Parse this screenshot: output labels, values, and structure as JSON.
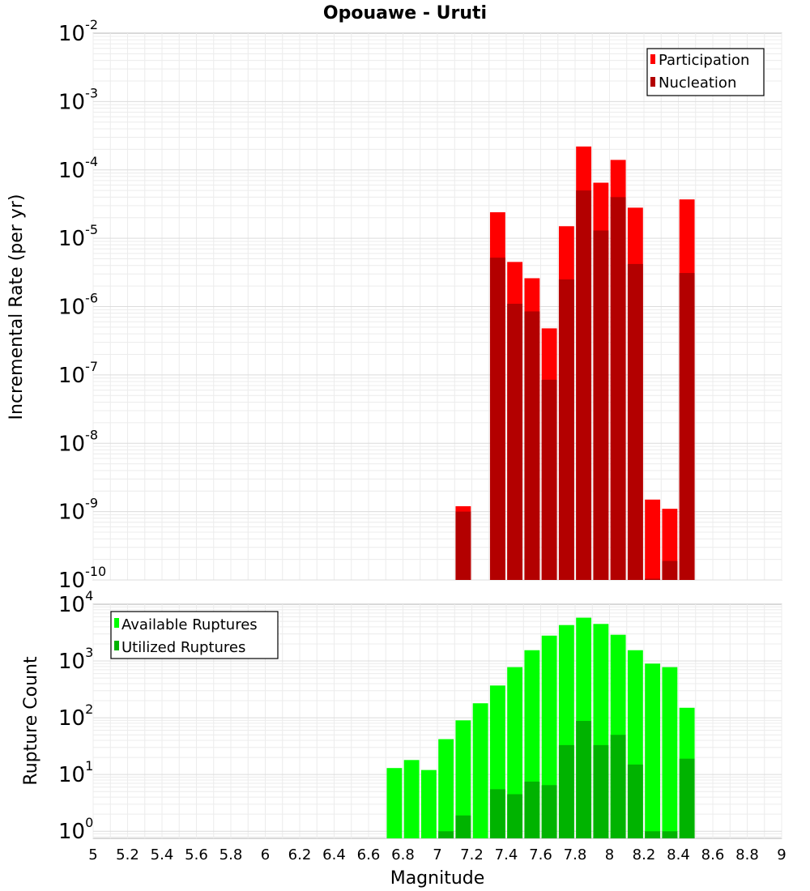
{
  "chart_data": {
    "type": "bar",
    "title": "Opouawe - Uruti",
    "xlabel": "Magnitude",
    "xlim": [
      5,
      9
    ],
    "x_ticks": [
      "5",
      "5.2",
      "5.4",
      "5.6",
      "5.8",
      "6",
      "6.2",
      "6.4",
      "6.6",
      "6.8",
      "7",
      "7.2",
      "7.4",
      "7.6",
      "7.8",
      "8",
      "8.2",
      "8.4",
      "8.6",
      "8.8",
      "9"
    ],
    "grid": true,
    "panels": [
      {
        "id": "rate",
        "ylabel": "Incremental Rate (per yr)",
        "yscale": "log",
        "ylim": [
          1e-10,
          0.01
        ],
        "y_tick_exponents": [
          "-10",
          "-9",
          "-8",
          "-7",
          "-6",
          "-5",
          "-4",
          "-3",
          "-2"
        ],
        "y_tick_base": "10",
        "legend_position": "top-right",
        "series": [
          {
            "name": "Participation",
            "color": "#ff0000",
            "points": [
              {
                "x": 7.15,
                "y": 1.2e-09
              },
              {
                "x": 7.35,
                "y": 2.4e-05
              },
              {
                "x": 7.45,
                "y": 4.5e-06
              },
              {
                "x": 7.55,
                "y": 2.6e-06
              },
              {
                "x": 7.65,
                "y": 4.8e-07
              },
              {
                "x": 7.75,
                "y": 1.5e-05
              },
              {
                "x": 7.85,
                "y": 0.00022
              },
              {
                "x": 7.95,
                "y": 6.5e-05
              },
              {
                "x": 8.05,
                "y": 0.00014
              },
              {
                "x": 8.15,
                "y": 2.8e-05
              },
              {
                "x": 8.25,
                "y": 1.5e-09
              },
              {
                "x": 8.35,
                "y": 1.1e-09
              },
              {
                "x": 8.45,
                "y": 3.7e-05
              }
            ]
          },
          {
            "name": "Nucleation",
            "color": "#b30000",
            "points": [
              {
                "x": 7.15,
                "y": 1e-09
              },
              {
                "x": 7.35,
                "y": 5.2e-06
              },
              {
                "x": 7.45,
                "y": 1.1e-06
              },
              {
                "x": 7.55,
                "y": 8.5e-07
              },
              {
                "x": 7.65,
                "y": 8.5e-08
              },
              {
                "x": 7.75,
                "y": 2.5e-06
              },
              {
                "x": 7.85,
                "y": 5e-05
              },
              {
                "x": 7.95,
                "y": 1.3e-05
              },
              {
                "x": 8.05,
                "y": 4e-05
              },
              {
                "x": 8.15,
                "y": 4.2e-06
              },
              {
                "x": 8.25,
                "y": 1e-10
              },
              {
                "x": 8.35,
                "y": 1.9e-10
              },
              {
                "x": 8.45,
                "y": 3.1e-06
              }
            ]
          }
        ]
      },
      {
        "id": "count",
        "ylabel": "Rupture Count",
        "yscale": "log",
        "ylim": [
          0.75,
          10000
        ],
        "y_tick_exponents": [
          "0",
          "1",
          "2",
          "3",
          "4"
        ],
        "y_tick_base": "10",
        "legend_position": "top-left",
        "series": [
          {
            "name": "Available Ruptures",
            "color": "#00ff00",
            "points": [
              {
                "x": 6.75,
                "y": 13
              },
              {
                "x": 6.85,
                "y": 18
              },
              {
                "x": 6.95,
                "y": 12
              },
              {
                "x": 7.05,
                "y": 42
              },
              {
                "x": 7.15,
                "y": 90
              },
              {
                "x": 7.25,
                "y": 180
              },
              {
                "x": 7.35,
                "y": 370
              },
              {
                "x": 7.45,
                "y": 780
              },
              {
                "x": 7.55,
                "y": 1550
              },
              {
                "x": 7.65,
                "y": 2800
              },
              {
                "x": 7.75,
                "y": 4300
              },
              {
                "x": 7.85,
                "y": 5800
              },
              {
                "x": 7.95,
                "y": 4500
              },
              {
                "x": 8.05,
                "y": 2900
              },
              {
                "x": 8.15,
                "y": 1550
              },
              {
                "x": 8.25,
                "y": 900
              },
              {
                "x": 8.35,
                "y": 780
              },
              {
                "x": 8.45,
                "y": 150
              }
            ]
          },
          {
            "name": "Utilized Ruptures",
            "color": "#00b300",
            "points": [
              {
                "x": 7.05,
                "y": 1
              },
              {
                "x": 7.15,
                "y": 1.9
              },
              {
                "x": 7.35,
                "y": 5.5
              },
              {
                "x": 7.45,
                "y": 4.5
              },
              {
                "x": 7.55,
                "y": 7.5
              },
              {
                "x": 7.65,
                "y": 6.5
              },
              {
                "x": 7.75,
                "y": 33
              },
              {
                "x": 7.85,
                "y": 88
              },
              {
                "x": 7.95,
                "y": 33
              },
              {
                "x": 8.05,
                "y": 50
              },
              {
                "x": 8.15,
                "y": 15
              },
              {
                "x": 8.25,
                "y": 1
              },
              {
                "x": 8.35,
                "y": 1
              },
              {
                "x": 8.45,
                "y": 19
              }
            ]
          }
        ]
      }
    ]
  }
}
